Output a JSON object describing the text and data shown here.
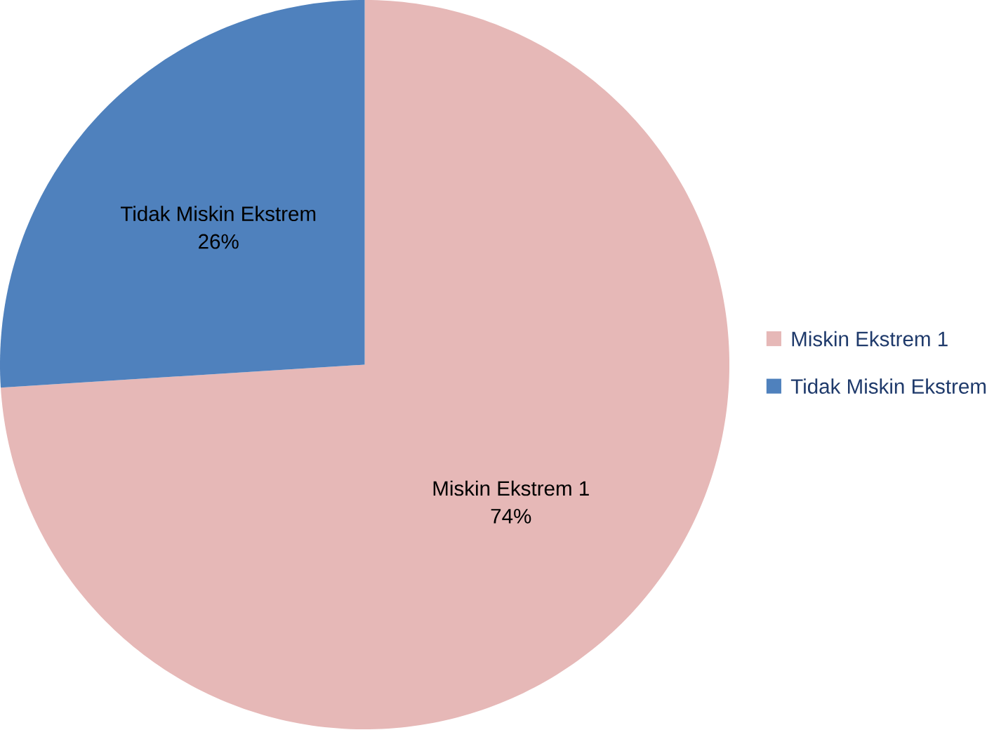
{
  "chart_data": {
    "type": "pie",
    "categories": [
      "Miskin Ekstrem 1",
      "Tidak Miskin Ekstrem"
    ],
    "values": [
      74,
      26
    ],
    "colors": [
      "#e6b8b7",
      "#4f81bd"
    ],
    "value_labels": [
      "74%",
      "26%"
    ],
    "legend": "right"
  }
}
